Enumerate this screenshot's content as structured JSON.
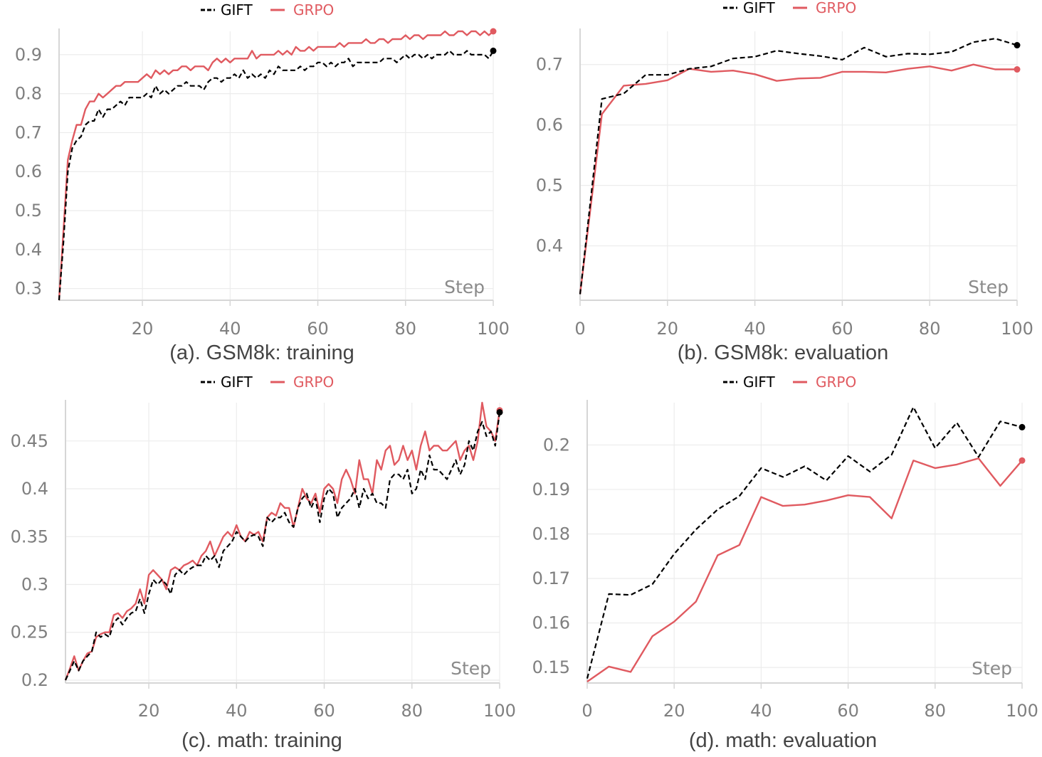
{
  "legend": {
    "gift": "GIFT",
    "grpo": "GRPO"
  },
  "colors": {
    "gift": "#000000",
    "grpo": "#e05a60"
  },
  "chart_data": [
    {
      "type": "line",
      "caption": "(a). GSM8k: training",
      "xlabel": "Step",
      "xlim": [
        1,
        100
      ],
      "ylim": [
        0.27,
        0.96
      ],
      "xticks": [
        20,
        40,
        60,
        80,
        100
      ],
      "yticks": [
        0.3,
        0.4,
        0.5,
        0.6,
        0.7,
        0.8,
        0.9
      ],
      "ytick_labels": [
        "0.3",
        "0.4",
        "0.5",
        "0.6",
        "0.7",
        "0.8",
        "0.9"
      ],
      "series": [
        {
          "name": "GIFT",
          "x": [
            1,
            2,
            3,
            4,
            5,
            6,
            7,
            8,
            9,
            10,
            11,
            12,
            13,
            14,
            15,
            16,
            17,
            18,
            19,
            20,
            21,
            22,
            23,
            24,
            25,
            26,
            27,
            28,
            29,
            30,
            31,
            32,
            33,
            34,
            35,
            36,
            37,
            38,
            39,
            40,
            41,
            42,
            43,
            44,
            45,
            46,
            47,
            48,
            49,
            50,
            51,
            52,
            53,
            54,
            55,
            56,
            57,
            58,
            59,
            60,
            61,
            62,
            63,
            64,
            65,
            66,
            67,
            68,
            69,
            70,
            71,
            72,
            73,
            74,
            75,
            76,
            77,
            78,
            79,
            80,
            81,
            82,
            83,
            84,
            85,
            86,
            87,
            88,
            89,
            90,
            91,
            92,
            93,
            94,
            95,
            96,
            97,
            98,
            99,
            100
          ],
          "y": [
            0.27,
            0.42,
            0.6,
            0.66,
            0.68,
            0.69,
            0.72,
            0.73,
            0.73,
            0.76,
            0.74,
            0.76,
            0.76,
            0.77,
            0.78,
            0.77,
            0.79,
            0.79,
            0.79,
            0.79,
            0.8,
            0.79,
            0.82,
            0.8,
            0.81,
            0.8,
            0.81,
            0.82,
            0.82,
            0.83,
            0.82,
            0.82,
            0.82,
            0.81,
            0.83,
            0.84,
            0.84,
            0.83,
            0.84,
            0.84,
            0.85,
            0.84,
            0.86,
            0.84,
            0.85,
            0.84,
            0.85,
            0.84,
            0.86,
            0.85,
            0.87,
            0.86,
            0.86,
            0.86,
            0.86,
            0.87,
            0.86,
            0.87,
            0.87,
            0.88,
            0.88,
            0.87,
            0.88,
            0.87,
            0.88,
            0.88,
            0.89,
            0.87,
            0.88,
            0.88,
            0.88,
            0.88,
            0.88,
            0.88,
            0.89,
            0.89,
            0.89,
            0.88,
            0.89,
            0.9,
            0.89,
            0.9,
            0.9,
            0.89,
            0.9,
            0.89,
            0.9,
            0.9,
            0.9,
            0.91,
            0.9,
            0.9,
            0.9,
            0.91,
            0.9,
            0.9,
            0.9,
            0.9,
            0.89,
            0.91
          ]
        },
        {
          "name": "GRPO",
          "x": [
            1,
            2,
            3,
            4,
            5,
            6,
            7,
            8,
            9,
            10,
            11,
            12,
            13,
            14,
            15,
            16,
            17,
            18,
            19,
            20,
            21,
            22,
            23,
            24,
            25,
            26,
            27,
            28,
            29,
            30,
            31,
            32,
            33,
            34,
            35,
            36,
            37,
            38,
            39,
            40,
            41,
            42,
            43,
            44,
            45,
            46,
            47,
            48,
            49,
            50,
            51,
            52,
            53,
            54,
            55,
            56,
            57,
            58,
            59,
            60,
            61,
            62,
            63,
            64,
            65,
            66,
            67,
            68,
            69,
            70,
            71,
            72,
            73,
            74,
            75,
            76,
            77,
            78,
            79,
            80,
            81,
            82,
            83,
            84,
            85,
            86,
            87,
            88,
            89,
            90,
            91,
            92,
            93,
            94,
            95,
            96,
            97,
            98,
            99,
            100
          ],
          "y": [
            0.27,
            0.45,
            0.63,
            0.68,
            0.72,
            0.72,
            0.76,
            0.78,
            0.78,
            0.8,
            0.79,
            0.8,
            0.81,
            0.82,
            0.82,
            0.83,
            0.83,
            0.83,
            0.83,
            0.84,
            0.85,
            0.84,
            0.86,
            0.85,
            0.86,
            0.85,
            0.86,
            0.86,
            0.87,
            0.87,
            0.86,
            0.87,
            0.87,
            0.87,
            0.86,
            0.88,
            0.89,
            0.88,
            0.89,
            0.88,
            0.89,
            0.89,
            0.89,
            0.89,
            0.91,
            0.89,
            0.9,
            0.9,
            0.9,
            0.9,
            0.91,
            0.9,
            0.91,
            0.9,
            0.92,
            0.91,
            0.91,
            0.92,
            0.91,
            0.92,
            0.92,
            0.92,
            0.92,
            0.92,
            0.93,
            0.92,
            0.93,
            0.93,
            0.93,
            0.93,
            0.94,
            0.93,
            0.93,
            0.94,
            0.94,
            0.93,
            0.94,
            0.94,
            0.94,
            0.95,
            0.94,
            0.95,
            0.95,
            0.94,
            0.95,
            0.95,
            0.95,
            0.95,
            0.96,
            0.95,
            0.95,
            0.96,
            0.96,
            0.95,
            0.96,
            0.96,
            0.95,
            0.96,
            0.95,
            0.96
          ]
        }
      ]
    },
    {
      "type": "line",
      "caption": "(b). GSM8k: evaluation",
      "xlabel": "Step",
      "xlim": [
        0,
        100
      ],
      "ylim": [
        0.31,
        0.755
      ],
      "xticks": [
        0,
        20,
        40,
        60,
        80,
        100
      ],
      "yticks": [
        0.4,
        0.5,
        0.6,
        0.7
      ],
      "ytick_labels": [
        "0.4",
        "0.5",
        "0.6",
        "0.7"
      ],
      "series": [
        {
          "name": "GIFT",
          "x": [
            0,
            5,
            10,
            15,
            20,
            25,
            30,
            35,
            40,
            45,
            50,
            55,
            60,
            65,
            70,
            75,
            80,
            85,
            90,
            95,
            100
          ],
          "y": [
            0.32,
            0.643,
            0.652,
            0.683,
            0.683,
            0.693,
            0.697,
            0.71,
            0.713,
            0.723,
            0.718,
            0.714,
            0.708,
            0.728,
            0.713,
            0.718,
            0.717,
            0.721,
            0.737,
            0.743,
            0.732
          ]
        },
        {
          "name": "GRPO",
          "x": [
            0,
            5,
            10,
            15,
            20,
            25,
            30,
            35,
            40,
            45,
            50,
            55,
            60,
            65,
            70,
            75,
            80,
            85,
            90,
            95,
            100
          ],
          "y": [
            0.32,
            0.618,
            0.665,
            0.668,
            0.674,
            0.693,
            0.688,
            0.69,
            0.684,
            0.673,
            0.677,
            0.678,
            0.688,
            0.688,
            0.687,
            0.693,
            0.697,
            0.69,
            0.7,
            0.692,
            0.692
          ]
        }
      ]
    },
    {
      "type": "line",
      "caption": "(c). math: training",
      "xlabel": "Step",
      "xlim": [
        1,
        100
      ],
      "ylim": [
        0.197,
        0.49
      ],
      "xticks": [
        20,
        40,
        60,
        80,
        100
      ],
      "yticks": [
        0.2,
        0.25,
        0.3,
        0.35,
        0.4,
        0.45
      ],
      "ytick_labels": [
        "0.2",
        "0.25",
        "0.3",
        "0.35",
        "0.4",
        "0.45"
      ],
      "series": [
        {
          "name": "GIFT",
          "x": [
            1,
            2,
            3,
            4,
            5,
            6,
            7,
            8,
            9,
            10,
            11,
            12,
            13,
            14,
            15,
            16,
            17,
            18,
            19,
            20,
            21,
            22,
            23,
            24,
            25,
            26,
            27,
            28,
            29,
            30,
            31,
            32,
            33,
            34,
            35,
            36,
            37,
            38,
            39,
            40,
            41,
            42,
            43,
            44,
            45,
            46,
            47,
            48,
            49,
            50,
            51,
            52,
            53,
            54,
            55,
            56,
            57,
            58,
            59,
            60,
            61,
            62,
            63,
            64,
            65,
            66,
            67,
            68,
            69,
            70,
            71,
            72,
            73,
            74,
            75,
            76,
            77,
            78,
            79,
            80,
            81,
            82,
            83,
            84,
            85,
            86,
            87,
            88,
            89,
            90,
            91,
            92,
            93,
            94,
            95,
            96,
            97,
            98,
            99,
            100
          ],
          "y": [
            0.2,
            0.21,
            0.22,
            0.21,
            0.22,
            0.225,
            0.23,
            0.25,
            0.245,
            0.248,
            0.245,
            0.26,
            0.265,
            0.258,
            0.265,
            0.27,
            0.272,
            0.285,
            0.27,
            0.29,
            0.305,
            0.3,
            0.305,
            0.3,
            0.29,
            0.31,
            0.315,
            0.31,
            0.315,
            0.318,
            0.32,
            0.32,
            0.33,
            0.325,
            0.33,
            0.318,
            0.335,
            0.34,
            0.345,
            0.355,
            0.35,
            0.345,
            0.35,
            0.352,
            0.35,
            0.34,
            0.37,
            0.365,
            0.37,
            0.37,
            0.375,
            0.365,
            0.36,
            0.38,
            0.39,
            0.395,
            0.38,
            0.39,
            0.365,
            0.39,
            0.4,
            0.395,
            0.37,
            0.38,
            0.385,
            0.39,
            0.4,
            0.38,
            0.4,
            0.39,
            0.395,
            0.385,
            0.385,
            0.38,
            0.41,
            0.415,
            0.415,
            0.41,
            0.42,
            0.395,
            0.4,
            0.42,
            0.41,
            0.435,
            0.42,
            0.42,
            0.415,
            0.41,
            0.42,
            0.43,
            0.415,
            0.425,
            0.45,
            0.44,
            0.46,
            0.47,
            0.455,
            0.46,
            0.445,
            0.48
          ]
        },
        {
          "name": "GRPO",
          "x": [
            1,
            2,
            3,
            4,
            5,
            6,
            7,
            8,
            9,
            10,
            11,
            12,
            13,
            14,
            15,
            16,
            17,
            18,
            19,
            20,
            21,
            22,
            23,
            24,
            25,
            26,
            27,
            28,
            29,
            30,
            31,
            32,
            33,
            34,
            35,
            36,
            37,
            38,
            39,
            40,
            41,
            42,
            43,
            44,
            45,
            46,
            47,
            48,
            49,
            50,
            51,
            52,
            53,
            54,
            55,
            56,
            57,
            58,
            59,
            60,
            61,
            62,
            63,
            64,
            65,
            66,
            67,
            68,
            69,
            70,
            71,
            72,
            73,
            74,
            75,
            76,
            77,
            78,
            79,
            80,
            81,
            82,
            83,
            84,
            85,
            86,
            87,
            88,
            89,
            90,
            91,
            92,
            93,
            94,
            95,
            96,
            97,
            98,
            99,
            100
          ],
          "y": [
            0.2,
            0.212,
            0.225,
            0.21,
            0.22,
            0.228,
            0.23,
            0.245,
            0.248,
            0.25,
            0.25,
            0.268,
            0.27,
            0.265,
            0.272,
            0.275,
            0.28,
            0.295,
            0.28,
            0.31,
            0.315,
            0.31,
            0.305,
            0.295,
            0.315,
            0.318,
            0.315,
            0.32,
            0.322,
            0.325,
            0.32,
            0.33,
            0.335,
            0.345,
            0.33,
            0.34,
            0.35,
            0.355,
            0.35,
            0.362,
            0.35,
            0.345,
            0.355,
            0.352,
            0.355,
            0.345,
            0.37,
            0.375,
            0.372,
            0.385,
            0.38,
            0.38,
            0.36,
            0.38,
            0.4,
            0.39,
            0.385,
            0.395,
            0.375,
            0.4,
            0.405,
            0.4,
            0.385,
            0.41,
            0.42,
            0.41,
            0.395,
            0.43,
            0.41,
            0.41,
            0.395,
            0.43,
            0.42,
            0.44,
            0.445,
            0.425,
            0.43,
            0.445,
            0.43,
            0.44,
            0.42,
            0.445,
            0.46,
            0.44,
            0.445,
            0.445,
            0.44,
            0.44,
            0.445,
            0.45,
            0.43,
            0.44,
            0.445,
            0.43,
            0.45,
            0.49,
            0.465,
            0.46,
            0.45,
            0.482
          ]
        }
      ]
    },
    {
      "type": "line",
      "caption": "(d). math: evaluation",
      "xlabel": "Step",
      "xlim": [
        0,
        100
      ],
      "ylim": [
        0.1465,
        0.2095
      ],
      "xticks": [
        0,
        20,
        40,
        60,
        80,
        100
      ],
      "yticks": [
        0.15,
        0.16,
        0.17,
        0.18,
        0.19,
        0.2
      ],
      "ytick_labels": [
        "0.15",
        "0.16",
        "0.17",
        "0.18",
        "0.19",
        "0.2"
      ],
      "series": [
        {
          "name": "GIFT",
          "x": [
            0,
            5,
            10,
            15,
            20,
            25,
            30,
            35,
            40,
            45,
            50,
            55,
            60,
            65,
            70,
            75,
            80,
            85,
            90,
            95,
            100
          ],
          "y": [
            0.1475,
            0.1665,
            0.1663,
            0.1687,
            0.1755,
            0.181,
            0.1855,
            0.1885,
            0.1948,
            0.1928,
            0.1952,
            0.192,
            0.1975,
            0.194,
            0.1978,
            0.2085,
            0.1993,
            0.205,
            0.1973,
            0.2053,
            0.204
          ]
        },
        {
          "name": "GRPO",
          "x": [
            0,
            5,
            10,
            15,
            20,
            25,
            30,
            35,
            40,
            45,
            50,
            55,
            60,
            65,
            70,
            75,
            80,
            85,
            90,
            95,
            100
          ],
          "y": [
            0.1468,
            0.1502,
            0.149,
            0.157,
            0.1603,
            0.1648,
            0.1752,
            0.1775,
            0.1883,
            0.1863,
            0.1866,
            0.1875,
            0.1887,
            0.1883,
            0.1835,
            0.1965,
            0.1948,
            0.1956,
            0.197,
            0.1908,
            0.1965
          ]
        }
      ]
    }
  ]
}
